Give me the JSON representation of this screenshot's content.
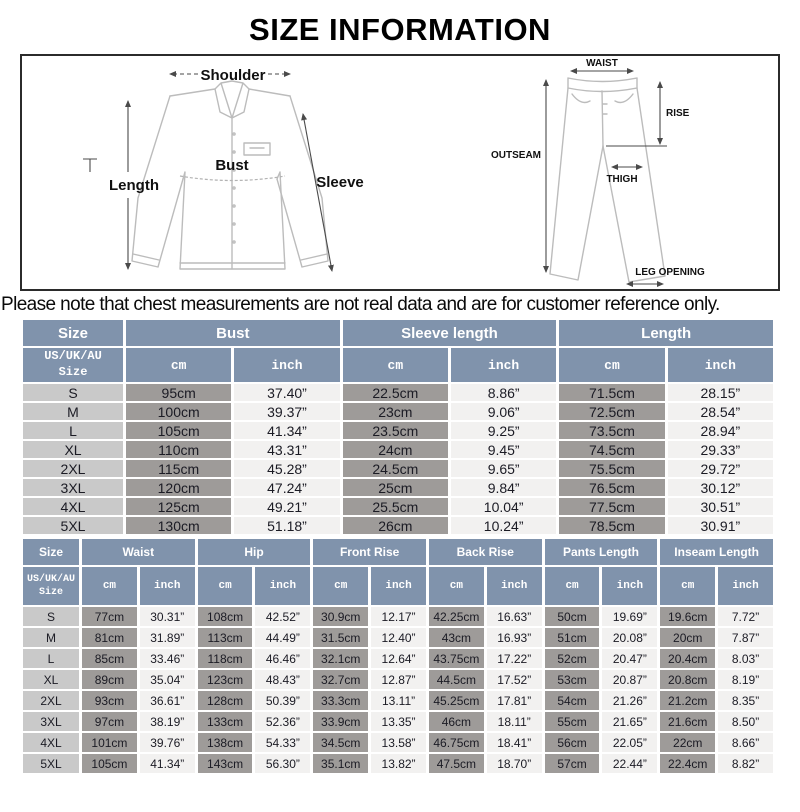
{
  "title": "SIZE INFORMATION",
  "note": "Please note that chest measurements are not real data and are for customer reference only.",
  "colors": {
    "header_bg": "#8093AC",
    "size_col_bg": "#c9c9c9",
    "cm_col_bg": "#9e9b99",
    "inch_col_bg": "#f2f1f0",
    "header_text": "#ffffff",
    "body_text": "#1b1b24"
  },
  "diagram": {
    "shirt": {
      "shoulder": "Shoulder",
      "length": "Length",
      "bust": "Bust",
      "sleeve": "Sleeve"
    },
    "pants": {
      "waist": "WAIST",
      "rise": "RISE",
      "outseam": "OUTSEAM",
      "thigh": "THIGH",
      "leg_opening": "LEG OPENING"
    }
  },
  "top_table": {
    "size_header": "Size",
    "size_subheader": "US/UK/AU\nSize",
    "unit_cm": "cm",
    "unit_inch": "inch",
    "groups": [
      "Bust",
      "Sleeve length",
      "Length"
    ],
    "rows": [
      {
        "size": "S",
        "cells": [
          "95cm",
          "37.40”",
          "22.5cm",
          "8.86”",
          "71.5cm",
          "28.15”"
        ]
      },
      {
        "size": "M",
        "cells": [
          "100cm",
          "39.37”",
          "23cm",
          "9.06”",
          "72.5cm",
          "28.54”"
        ]
      },
      {
        "size": "L",
        "cells": [
          "105cm",
          "41.34”",
          "23.5cm",
          "9.25”",
          "73.5cm",
          "28.94”"
        ]
      },
      {
        "size": "XL",
        "cells": [
          "110cm",
          "43.31”",
          "24cm",
          "9.45”",
          "74.5cm",
          "29.33”"
        ]
      },
      {
        "size": "2XL",
        "cells": [
          "115cm",
          "45.28”",
          "24.5cm",
          "9.65”",
          "75.5cm",
          "29.72”"
        ]
      },
      {
        "size": "3XL",
        "cells": [
          "120cm",
          "47.24”",
          "25cm",
          "9.84”",
          "76.5cm",
          "30.12”"
        ]
      },
      {
        "size": "4XL",
        "cells": [
          "125cm",
          "49.21”",
          "25.5cm",
          "10.04”",
          "77.5cm",
          "30.51”"
        ]
      },
      {
        "size": "5XL",
        "cells": [
          "130cm",
          "51.18”",
          "26cm",
          "10.24”",
          "78.5cm",
          "30.91”"
        ]
      }
    ]
  },
  "bottom_table": {
    "size_header": "Size",
    "size_subheader": "US/UK/AU\nSize",
    "unit_cm": "cm",
    "unit_inch": "inch",
    "groups": [
      "Waist",
      "Hip",
      "Front Rise",
      "Back Rise",
      "Pants Length",
      "Inseam Length"
    ],
    "rows": [
      {
        "size": "S",
        "cells": [
          "77cm",
          "30.31”",
          "108cm",
          "42.52”",
          "30.9cm",
          "12.17”",
          "42.25cm",
          "16.63”",
          "50cm",
          "19.69”",
          "19.6cm",
          "7.72”"
        ]
      },
      {
        "size": "M",
        "cells": [
          "81cm",
          "31.89”",
          "113cm",
          "44.49”",
          "31.5cm",
          "12.40”",
          "43cm",
          "16.93”",
          "51cm",
          "20.08”",
          "20cm",
          "7.87”"
        ]
      },
      {
        "size": "L",
        "cells": [
          "85cm",
          "33.46”",
          "118cm",
          "46.46”",
          "32.1cm",
          "12.64”",
          "43.75cm",
          "17.22”",
          "52cm",
          "20.47”",
          "20.4cm",
          "8.03”"
        ]
      },
      {
        "size": "XL",
        "cells": [
          "89cm",
          "35.04”",
          "123cm",
          "48.43”",
          "32.7cm",
          "12.87”",
          "44.5cm",
          "17.52”",
          "53cm",
          "20.87”",
          "20.8cm",
          "8.19”"
        ]
      },
      {
        "size": "2XL",
        "cells": [
          "93cm",
          "36.61”",
          "128cm",
          "50.39”",
          "33.3cm",
          "13.11”",
          "45.25cm",
          "17.81”",
          "54cm",
          "21.26”",
          "21.2cm",
          "8.35”"
        ]
      },
      {
        "size": "3XL",
        "cells": [
          "97cm",
          "38.19”",
          "133cm",
          "52.36”",
          "33.9cm",
          "13.35”",
          "46cm",
          "18.11”",
          "55cm",
          "21.65”",
          "21.6cm",
          "8.50”"
        ]
      },
      {
        "size": "4XL",
        "cells": [
          "101cm",
          "39.76”",
          "138cm",
          "54.33”",
          "34.5cm",
          "13.58”",
          "46.75cm",
          "18.41”",
          "56cm",
          "22.05”",
          "22cm",
          "8.66”"
        ]
      },
      {
        "size": "5XL",
        "cells": [
          "105cm",
          "41.34”",
          "143cm",
          "56.30”",
          "35.1cm",
          "13.82”",
          "47.5cm",
          "18.70”",
          "57cm",
          "22.44”",
          "22.4cm",
          "8.82”"
        ]
      }
    ]
  }
}
